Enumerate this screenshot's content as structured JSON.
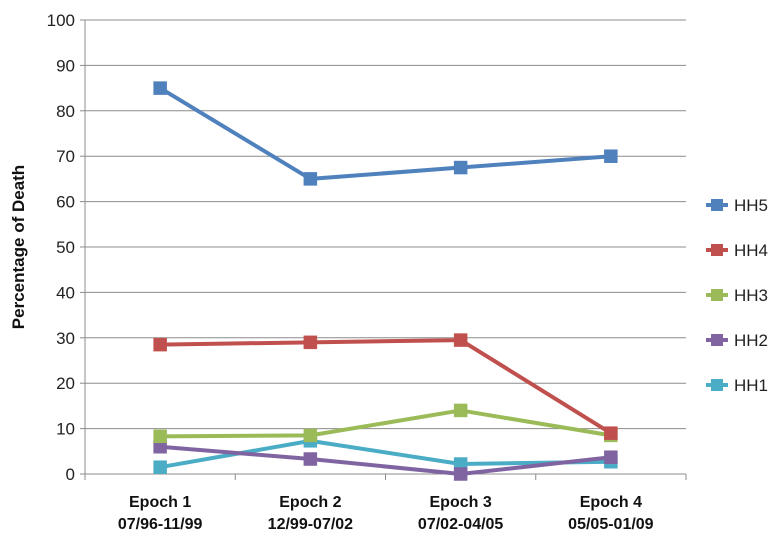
{
  "chart_data": {
    "type": "line",
    "title": "",
    "xlabel": "",
    "ylabel": "Percentage of Death",
    "ylim": [
      0,
      100
    ],
    "yticks": [
      "0",
      "10",
      "20",
      "30",
      "40",
      "50",
      "60",
      "70",
      "80",
      "90",
      "100"
    ],
    "categories": [
      {
        "line1": "Epoch 1",
        "line2": "07/96-11/99"
      },
      {
        "line1": "Epoch 2",
        "line2": "12/99-07/02"
      },
      {
        "line1": "Epoch 3",
        "line2": "07/02-04/05"
      },
      {
        "line1": "Epoch 4",
        "line2": "05/05-01/09"
      }
    ],
    "grid": "horizontal",
    "legend_position": "right",
    "series": [
      {
        "name": "HH5",
        "color": "#4F81BD",
        "values": [
          85,
          65,
          67.5,
          70
        ]
      },
      {
        "name": "HH4",
        "color": "#C0504D",
        "values": [
          28.5,
          29,
          29.5,
          9
        ]
      },
      {
        "name": "HH3",
        "color": "#9BBB59",
        "values": [
          8.3,
          8.5,
          14,
          8.5
        ]
      },
      {
        "name": "HH2",
        "color": "#8064A2",
        "values": [
          6,
          3.3,
          0,
          3.7
        ]
      },
      {
        "name": "HH1",
        "color": "#4BACC6",
        "values": [
          1.5,
          7.3,
          2.2,
          2.7
        ]
      }
    ]
  }
}
